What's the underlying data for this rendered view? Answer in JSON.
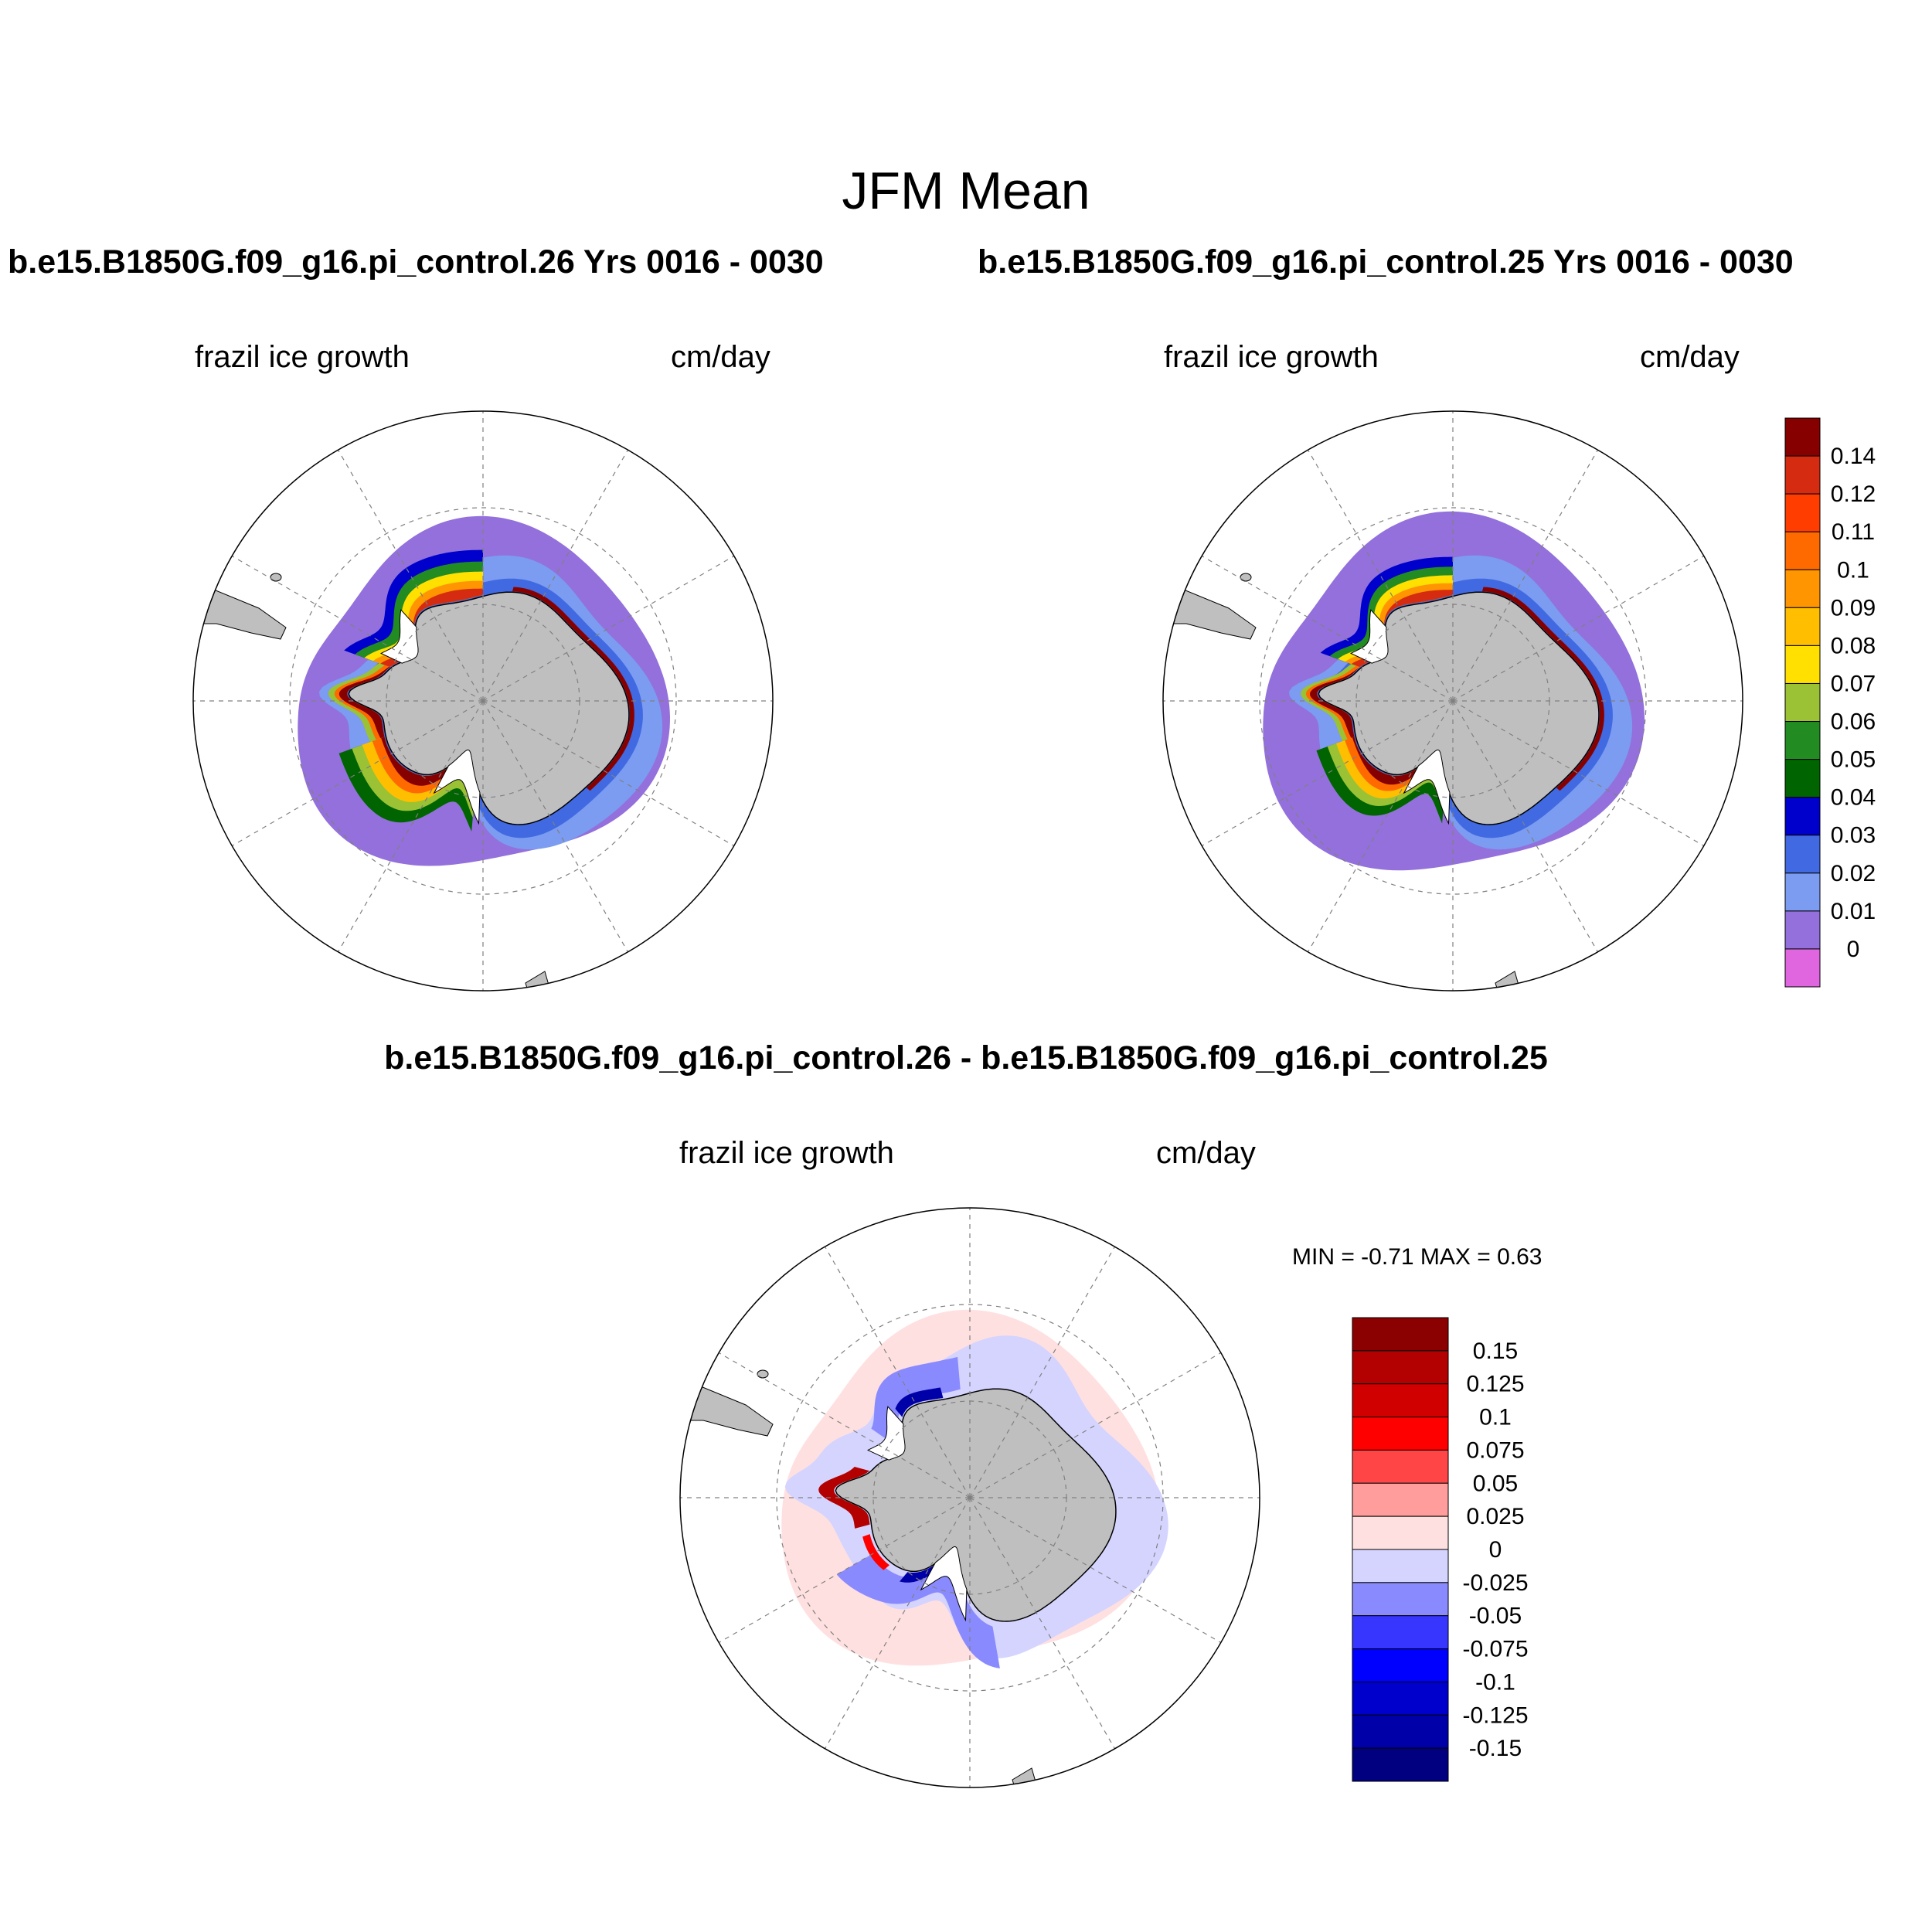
{
  "figure": {
    "title": "JFM Mean",
    "colors": {
      "land": "#bfbfbf",
      "ice_shelf": "#ffffff",
      "grid_line": "#808080"
    }
  },
  "panels": [
    {
      "id": "case26",
      "title": "b.e15.B1850G.f09_g16.pi_control.26  Yrs 0016 - 0030",
      "left_label": "frazil ice growth",
      "right_label": "cm/day"
    },
    {
      "id": "case25",
      "title": "b.e15.B1850G.f09_g16.pi_control.25  Yrs 0016 - 0030",
      "left_label": "frazil ice growth",
      "right_label": "cm/day"
    },
    {
      "id": "difference",
      "title": "b.e15.B1850G.f09_g16.pi_control.26 - b.e15.B1850G.f09_g16.pi_control.25",
      "left_label": "frazil ice growth",
      "right_label": "cm/day",
      "min_max_text": "MIN =  -0.71 MAX =   0.63"
    }
  ],
  "colorbars": {
    "absolute": {
      "labels": [
        "0.14",
        "0.12",
        "0.11",
        "0.1",
        "0.09",
        "0.08",
        "0.07",
        "0.06",
        "0.05",
        "0.04",
        "0.03",
        "0.02",
        "0.01",
        "0"
      ],
      "colors": [
        "#870000",
        "#d52b10",
        "#ff3d00",
        "#ff6a00",
        "#ff9500",
        "#ffbf00",
        "#ffe000",
        "#9ac234",
        "#228b22",
        "#006400",
        "#0000cd",
        "#4169e1",
        "#7b9cf0",
        "#9370db",
        "#e066e0"
      ]
    },
    "difference": {
      "labels": [
        "0.15",
        "0.125",
        "0.1",
        "0.075",
        "0.05",
        "0.025",
        "0",
        "-0.025",
        "-0.05",
        "-0.075",
        "-0.1",
        "-0.125",
        "-0.15"
      ],
      "colors": [
        "#8b0000",
        "#b30000",
        "#d10000",
        "#ff0000",
        "#ff4545",
        "#ff9c9c",
        "#ffe0e0",
        "#d4d4ff",
        "#8a8aff",
        "#3636ff",
        "#0000ff",
        "#0000cc",
        "#0000a8",
        "#000080"
      ]
    }
  }
}
